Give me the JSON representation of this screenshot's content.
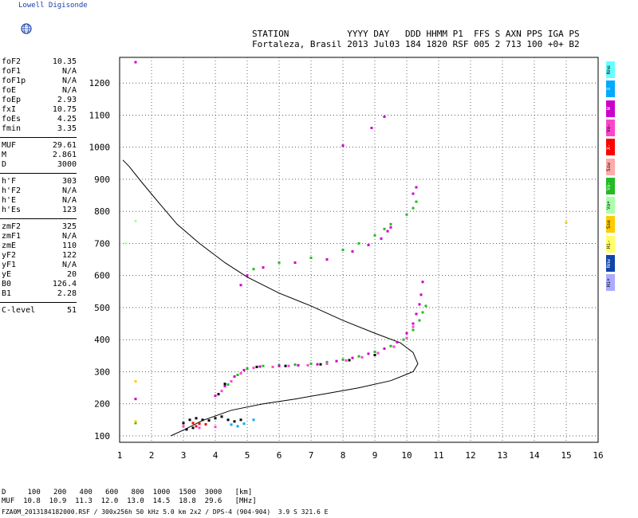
{
  "app": {
    "logo_text": "Lowell Digisonde"
  },
  "header": {
    "line1": "STATION           YYYY DAY   DDD HHMM P1  FFS S AXN PPS IGA PS",
    "line2": "Fortaleza, Brasil 2013 Jul03 184 1820 RSF 005 2 713 100 +0+ B2"
  },
  "params": {
    "group1": [
      {
        "k": "foF2",
        "v": "10.35"
      },
      {
        "k": "foF1",
        "v": "N/A"
      },
      {
        "k": "foF1p",
        "v": "N/A"
      },
      {
        "k": "foE",
        "v": "N/A"
      },
      {
        "k": "foEp",
        "v": "2.93"
      },
      {
        "k": "fxI",
        "v": "10.75"
      },
      {
        "k": "foEs",
        "v": "4.25"
      },
      {
        "k": "fmin",
        "v": "3.35"
      }
    ],
    "group2": [
      {
        "k": "MUF",
        "v": "29.61"
      },
      {
        "k": "M",
        "v": "2.861"
      },
      {
        "k": "D",
        "v": "3000"
      }
    ],
    "group3": [
      {
        "k": "h'F",
        "v": "303"
      },
      {
        "k": "h'F2",
        "v": "N/A"
      },
      {
        "k": "h'E",
        "v": "N/A"
      },
      {
        "k": "h'Es",
        "v": "123"
      }
    ],
    "group4": [
      {
        "k": "zmF2",
        "v": "325"
      },
      {
        "k": "zmF1",
        "v": "N/A"
      },
      {
        "k": "zmE",
        "v": "110"
      },
      {
        "k": "yF2",
        "v": "122"
      },
      {
        "k": "yF1",
        "v": "N/A"
      },
      {
        "k": "yE",
        "v": "20"
      },
      {
        "k": "B0",
        "v": "126.4"
      },
      {
        "k": "B1",
        "v": "2.28"
      }
    ],
    "group5": [
      {
        "k": "C-level",
        "v": "51"
      }
    ]
  },
  "legend": [
    {
      "label": "Nne",
      "color": "#66ffff"
    },
    {
      "label": "E",
      "color": "#00aaff"
    },
    {
      "label": "W",
      "color": "#cc00cc"
    },
    {
      "label": "Vo-",
      "color": "#ff44cc"
    },
    {
      "label": "X-",
      "color": "#ff0000"
    },
    {
      "label": "Ssw",
      "color": "#ffaaaa"
    },
    {
      "label": "Vo-",
      "color": "#22bb22"
    },
    {
      "label": "Vo+",
      "color": "#aaffaa"
    },
    {
      "label": "Sse",
      "color": "#ffcc00"
    },
    {
      "label": "Hi-",
      "color": "#ffff66"
    },
    {
      "label": "Nnw",
      "color": "#1144aa"
    },
    {
      "label": "Hi+",
      "color": "#aaaaff"
    }
  ],
  "footer": {
    "d_row": "D     100   200   400   600   800  1000  1500  3000   [km]",
    "muf_row": "MUF  10.8  10.9  11.3  12.0  13.0  14.5  18.8  29.6   [MHz]",
    "file_row": "FZA0M_2013184182000.RSF / 300x256h 50 kHz 5.0 km 2x2 / DPS-4 (904-904)  3.9 S 321.6 E"
  },
  "chart_data": {
    "type": "scatter",
    "title": "",
    "xlabel": "",
    "ylabel": "",
    "xlim": [
      1,
      16
    ],
    "ylim": [
      80,
      1280
    ],
    "xticks": [
      1,
      2,
      3,
      4,
      5,
      6,
      7,
      8,
      9,
      10,
      11,
      12,
      13,
      14,
      15,
      16
    ],
    "yticks": [
      100,
      200,
      300,
      400,
      500,
      600,
      700,
      800,
      900,
      1000,
      1100,
      1200
    ],
    "grid": true,
    "series": [
      {
        "color": "#22bb22",
        "points": [
          [
            4.1,
            230
          ],
          [
            4.4,
            260
          ],
          [
            4.7,
            290
          ],
          [
            5.0,
            310
          ],
          [
            5.5,
            318
          ],
          [
            6.0,
            320
          ],
          [
            6.5,
            322
          ],
          [
            7.0,
            325
          ],
          [
            7.5,
            330
          ],
          [
            8.0,
            338
          ],
          [
            8.5,
            348
          ],
          [
            9.0,
            362
          ],
          [
            9.5,
            380
          ],
          [
            9.9,
            400
          ],
          [
            10.2,
            430
          ],
          [
            10.4,
            460
          ],
          [
            10.5,
            485
          ],
          [
            10.6,
            505
          ],
          [
            1.5,
            140
          ],
          [
            5.2,
            620
          ],
          [
            6.0,
            640
          ],
          [
            7.0,
            655
          ],
          [
            8.0,
            680
          ],
          [
            8.5,
            700
          ],
          [
            9.0,
            725
          ],
          [
            9.3,
            745
          ],
          [
            9.5,
            760
          ],
          [
            10.0,
            790
          ],
          [
            10.2,
            810
          ],
          [
            10.3,
            830
          ]
        ]
      },
      {
        "color": "#cc00cc",
        "points": [
          [
            4.0,
            225
          ],
          [
            4.3,
            255
          ],
          [
            4.6,
            285
          ],
          [
            4.9,
            305
          ],
          [
            5.4,
            316
          ],
          [
            6.0,
            318
          ],
          [
            6.6,
            320
          ],
          [
            7.2,
            323
          ],
          [
            7.8,
            333
          ],
          [
            8.3,
            343
          ],
          [
            8.8,
            356
          ],
          [
            9.3,
            372
          ],
          [
            9.7,
            392
          ],
          [
            10.0,
            420
          ],
          [
            10.2,
            450
          ],
          [
            10.3,
            480
          ],
          [
            10.4,
            510
          ],
          [
            10.45,
            540
          ],
          [
            10.5,
            580
          ],
          [
            8.0,
            1005
          ],
          [
            8.9,
            1060
          ],
          [
            9.3,
            1095
          ],
          [
            4.8,
            570
          ],
          [
            5.0,
            600
          ],
          [
            5.5,
            625
          ],
          [
            6.5,
            640
          ],
          [
            7.5,
            650
          ],
          [
            8.3,
            675
          ],
          [
            8.8,
            695
          ],
          [
            9.2,
            715
          ],
          [
            9.4,
            738
          ],
          [
            9.5,
            750
          ],
          [
            10.2,
            855
          ],
          [
            10.3,
            875
          ],
          [
            1.5,
            1265
          ],
          [
            1.5,
            215
          ]
        ]
      },
      {
        "color": "#ff44cc",
        "points": [
          [
            4.2,
            240
          ],
          [
            4.5,
            270
          ],
          [
            4.8,
            295
          ],
          [
            5.2,
            312
          ],
          [
            5.8,
            315
          ],
          [
            6.3,
            318
          ],
          [
            6.9,
            320
          ],
          [
            7.5,
            325
          ],
          [
            8.1,
            335
          ],
          [
            8.6,
            345
          ],
          [
            9.1,
            358
          ],
          [
            9.6,
            378
          ],
          [
            10.0,
            405
          ],
          [
            10.2,
            440
          ],
          [
            3.0,
            130
          ],
          [
            3.5,
            125
          ],
          [
            4.0,
            128
          ]
        ]
      },
      {
        "color": "#ff0000",
        "points": [
          [
            3.3,
            140
          ],
          [
            3.5,
            138
          ],
          [
            3.7,
            136
          ],
          [
            3.4,
            130
          ]
        ]
      },
      {
        "color": "#000000",
        "points": [
          [
            3.0,
            140
          ],
          [
            3.2,
            150
          ],
          [
            3.4,
            155
          ],
          [
            3.6,
            150
          ],
          [
            3.8,
            148
          ],
          [
            4.0,
            155
          ],
          [
            4.2,
            160
          ],
          [
            4.4,
            150
          ],
          [
            4.6,
            145
          ],
          [
            4.8,
            150
          ],
          [
            3.1,
            120
          ],
          [
            3.3,
            125
          ],
          [
            4.1,
            230
          ],
          [
            4.3,
            262
          ],
          [
            5.3,
            315
          ],
          [
            6.2,
            318
          ],
          [
            7.3,
            323
          ],
          [
            8.2,
            336
          ],
          [
            9.0,
            352
          ]
        ]
      },
      {
        "color": "#00aaff",
        "points": [
          [
            4.5,
            135
          ],
          [
            4.7,
            130
          ],
          [
            4.9,
            138
          ],
          [
            5.2,
            150
          ]
        ]
      },
      {
        "color": "#ffcc00",
        "points": [
          [
            1.5,
            270
          ],
          [
            1.5,
            145
          ],
          [
            15.0,
            765
          ]
        ]
      },
      {
        "color": "#aaffaa",
        "points": [
          [
            1.2,
            700
          ],
          [
            1.5,
            770
          ]
        ]
      }
    ],
    "profile_curve": [
      [
        2.6,
        100
      ],
      [
        3.0,
        118
      ],
      [
        3.6,
        148
      ],
      [
        4.5,
        180
      ],
      [
        5.5,
        200
      ],
      [
        6.5,
        215
      ],
      [
        7.5,
        232
      ],
      [
        8.5,
        250
      ],
      [
        9.5,
        272
      ],
      [
        10.2,
        300
      ],
      [
        10.35,
        325
      ],
      [
        10.2,
        360
      ],
      [
        9.8,
        390
      ],
      [
        9.0,
        420
      ],
      [
        8.0,
        460
      ],
      [
        7.0,
        505
      ],
      [
        6.0,
        545
      ],
      [
        5.0,
        595
      ],
      [
        4.3,
        640
      ],
      [
        3.5,
        700
      ],
      [
        2.8,
        760
      ],
      [
        2.2,
        830
      ],
      [
        1.7,
        890
      ],
      [
        1.3,
        940
      ],
      [
        1.1,
        960
      ]
    ]
  }
}
